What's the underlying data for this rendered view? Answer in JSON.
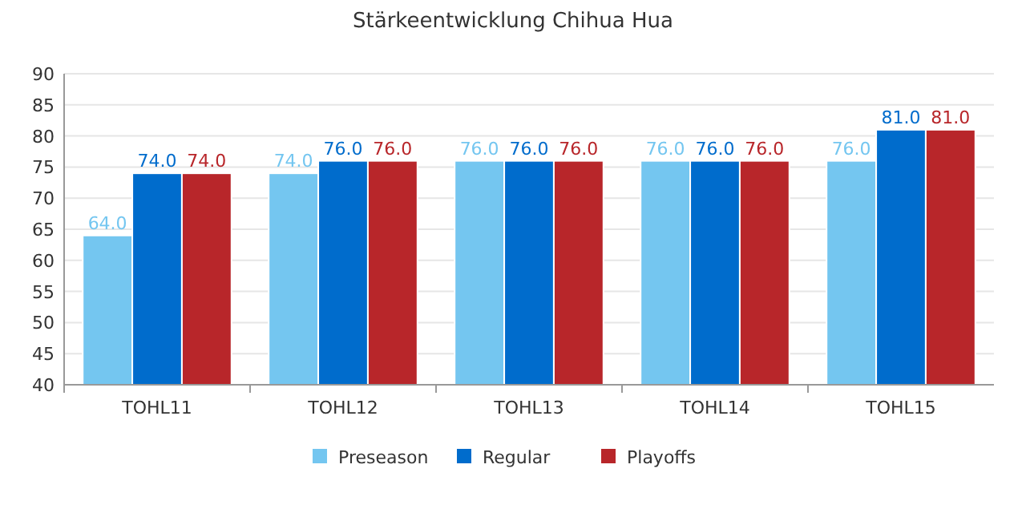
{
  "chart_data": {
    "type": "bar",
    "title": "Stärkeentwicklung Chihua Hua",
    "categories": [
      "TOHL11",
      "TOHL12",
      "TOHL13",
      "TOHL14",
      "TOHL15"
    ],
    "series": [
      {
        "name": "Preseason",
        "color": "#74c6f0",
        "values": [
          64,
          74,
          76,
          76,
          76
        ],
        "value_labels": [
          "64.0",
          "74.0",
          "76.0",
          "76.0",
          "76.0"
        ]
      },
      {
        "name": "Regular",
        "color": "#006ccc",
        "values": [
          74,
          76,
          76,
          76,
          81
        ],
        "value_labels": [
          "74.0",
          "76.0",
          "76.0",
          "76.0",
          "81.0"
        ]
      },
      {
        "name": "Playoffs",
        "color": "#b8262a",
        "values": [
          74,
          76,
          76,
          76,
          81
        ],
        "value_labels": [
          "74.0",
          "76.0",
          "76.0",
          "76.0",
          "81.0"
        ]
      }
    ],
    "ylim": [
      40,
      90
    ],
    "yticks": [
      40,
      45,
      50,
      55,
      60,
      65,
      70,
      75,
      80,
      85,
      90
    ],
    "grid": "y",
    "legend": "bottom"
  }
}
